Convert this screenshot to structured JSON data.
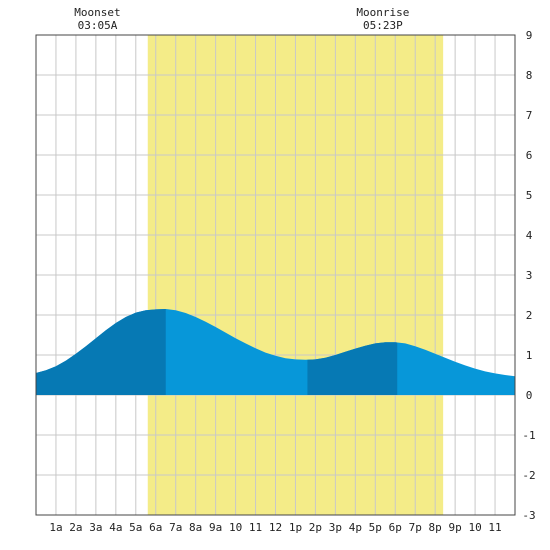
{
  "chart_data": {
    "type": "area",
    "title": "",
    "xlabel": "",
    "ylabel": "",
    "xlim": [
      0,
      24
    ],
    "ylim": [
      -3,
      9
    ],
    "grid": true,
    "x_tick_labels": [
      {
        "hour": 1,
        "label": "1a"
      },
      {
        "hour": 2,
        "label": "2a"
      },
      {
        "hour": 3,
        "label": "3a"
      },
      {
        "hour": 4,
        "label": "4a"
      },
      {
        "hour": 5,
        "label": "5a"
      },
      {
        "hour": 6,
        "label": "6a"
      },
      {
        "hour": 7,
        "label": "7a"
      },
      {
        "hour": 8,
        "label": "8a"
      },
      {
        "hour": 9,
        "label": "9a"
      },
      {
        "hour": 10,
        "label": "10"
      },
      {
        "hour": 11,
        "label": "11"
      },
      {
        "hour": 12,
        "label": "12"
      },
      {
        "hour": 13,
        "label": "1p"
      },
      {
        "hour": 14,
        "label": "2p"
      },
      {
        "hour": 15,
        "label": "3p"
      },
      {
        "hour": 16,
        "label": "4p"
      },
      {
        "hour": 17,
        "label": "5p"
      },
      {
        "hour": 18,
        "label": "6p"
      },
      {
        "hour": 19,
        "label": "7p"
      },
      {
        "hour": 20,
        "label": "8p"
      },
      {
        "hour": 21,
        "label": "9p"
      },
      {
        "hour": 22,
        "label": "10"
      },
      {
        "hour": 23,
        "label": "11"
      }
    ],
    "y_ticks": [
      -3,
      -2,
      -1,
      0,
      1,
      2,
      3,
      4,
      5,
      6,
      7,
      8,
      9
    ],
    "daylight_hours": [
      5.6,
      20.4
    ],
    "moon_events": [
      {
        "name": "Moonset",
        "time": "03:05A",
        "hour": 3.08
      },
      {
        "name": "Moonrise",
        "time": "05:23P",
        "hour": 17.38
      }
    ],
    "tide_extremes": [
      {
        "hour": 6.5,
        "value": 2.15,
        "kind": "high"
      },
      {
        "hour": 13.6,
        "value": 0.88,
        "kind": "low"
      },
      {
        "hour": 18.1,
        "value": 1.32,
        "kind": "high"
      }
    ],
    "series": [
      {
        "x": [
          0,
          0.5,
          1,
          1.5,
          2,
          2.5,
          3,
          3.5,
          4,
          4.5,
          5,
          5.5,
          6,
          6.5,
          7,
          7.5,
          8,
          8.5,
          9,
          9.5,
          10,
          10.5,
          11,
          11.5,
          12,
          12.5,
          13,
          13.5,
          14,
          14.5,
          15,
          15.5,
          16,
          16.5,
          17,
          17.5,
          18,
          18.5,
          19,
          19.5,
          20,
          20.5,
          21,
          21.5,
          22,
          22.5,
          23,
          23.5,
          24
        ],
        "y": [
          0.55,
          0.62,
          0.72,
          0.86,
          1.03,
          1.22,
          1.42,
          1.62,
          1.8,
          1.95,
          2.06,
          2.12,
          2.14,
          2.15,
          2.12,
          2.05,
          1.95,
          1.83,
          1.7,
          1.56,
          1.42,
          1.29,
          1.17,
          1.06,
          0.98,
          0.92,
          0.89,
          0.88,
          0.89,
          0.93,
          1.0,
          1.08,
          1.16,
          1.23,
          1.29,
          1.32,
          1.32,
          1.29,
          1.22,
          1.13,
          1.03,
          0.93,
          0.83,
          0.74,
          0.66,
          0.59,
          0.54,
          0.5,
          0.47
        ]
      }
    ],
    "shade_bands": [
      [
        0,
        6.5
      ],
      [
        13.6,
        18.1
      ]
    ]
  },
  "colors": {
    "daylight": "#f4ec88",
    "tide_light": "#0797d9",
    "tide_dark": "#0679b4",
    "grid": "#c8c8c8",
    "axis": "#444444",
    "background": "#ffffff"
  }
}
